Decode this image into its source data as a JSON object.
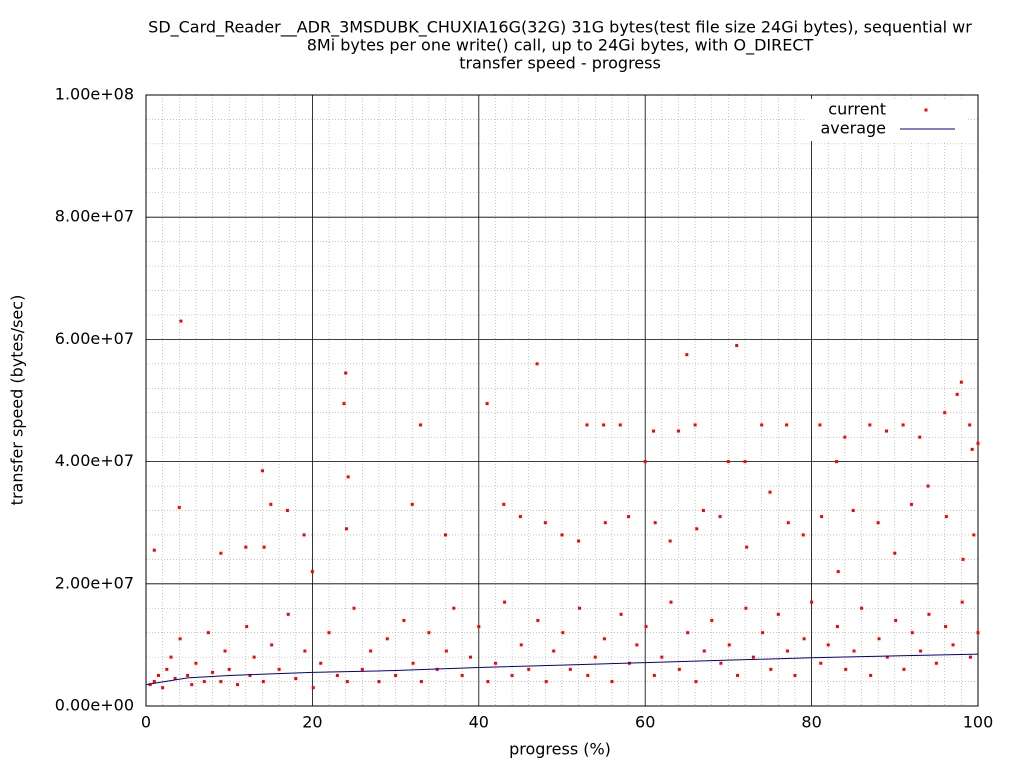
{
  "chart_data": {
    "type": "scatter",
    "title": [
      "SD_Card_Reader__ADR_3MSDUBK_CHUXIA16G(32G) 31G bytes(test file size 24Gi bytes), sequential wr",
      "8Mi bytes per one write() call, up to 24Gi bytes, with O_DIRECT",
      "transfer speed - progress"
    ],
    "x_label": "progress (%)",
    "y_label": "transfer speed (bytes/sec)",
    "xlim": [
      0,
      100
    ],
    "xticks": [
      0,
      20,
      40,
      60,
      80,
      100
    ],
    "ylim": [
      0,
      100000000
    ],
    "yticks": [
      {
        "value": 0,
        "label": "0.00e+00"
      },
      {
        "value": 20000000,
        "label": "2.00e+07"
      },
      {
        "value": 40000000,
        "label": "4.00e+07"
      },
      {
        "value": 60000000,
        "label": "6.00e+07"
      },
      {
        "value": 80000000,
        "label": "8.00e+07"
      },
      {
        "value": 100000000,
        "label": "1.00e+08"
      }
    ],
    "grid": true,
    "minor_grid": {
      "x": 10,
      "y": 5
    },
    "legend": "top-right",
    "series": [
      {
        "name": "current",
        "color": "#ff0000",
        "mark": "points",
        "x": [
          4.2,
          24,
          23.8,
          47,
          65,
          71,
          98,
          97.5,
          41,
          33,
          53,
          55,
          57,
          60,
          61,
          64,
          66,
          70,
          72,
          74,
          77,
          81,
          83,
          84,
          87,
          89,
          91,
          93,
          96,
          99,
          100,
          99.3,
          14,
          24.3,
          4,
          15,
          17,
          19,
          1,
          9,
          12,
          14.2,
          20,
          24.1,
          32,
          36,
          43,
          45,
          48,
          50,
          52,
          55.2,
          58,
          61.2,
          63,
          66.2,
          67,
          69,
          72.2,
          75,
          77.2,
          79,
          81.2,
          83.2,
          85,
          88,
          90,
          92,
          94,
          96.2,
          98.2,
          99.5,
          0.5,
          1,
          1.5,
          2,
          2.5,
          3,
          3.5,
          4.1,
          5,
          5.5,
          6,
          7,
          7.5,
          8,
          9,
          9.5,
          10,
          11,
          12.1,
          12.5,
          13,
          14.1,
          15.1,
          16,
          17.1,
          18,
          19.1,
          20.1,
          21,
          22,
          23,
          24.2,
          25,
          26,
          27,
          28,
          29,
          30,
          31,
          32.1,
          33.1,
          34,
          35,
          36.1,
          37,
          38,
          39,
          40,
          41.1,
          42,
          43.1,
          44,
          45.1,
          46,
          47.1,
          48.1,
          49,
          50.1,
          51,
          52.1,
          53.1,
          54,
          55.1,
          56,
          57.1,
          58.1,
          59,
          60.1,
          61.1,
          62,
          63.1,
          64.1,
          65.1,
          66.1,
          67.1,
          68,
          69.1,
          70.1,
          71.1,
          72.1,
          73,
          74.1,
          75.1,
          76,
          77.1,
          78,
          79.1,
          80,
          81.1,
          82,
          83.1,
          84.1,
          85.1,
          86,
          87.1,
          88.1,
          89.1,
          90.1,
          91.1,
          92.1,
          93.1,
          94.1,
          95,
          96.1,
          97,
          98.1,
          99.1,
          100
        ],
        "values": [
          63000000,
          54500000,
          49500000,
          56000000,
          57500000,
          59000000,
          53000000,
          51000000,
          49500000,
          46000000,
          46000000,
          46000000,
          46000000,
          40000000,
          45000000,
          45000000,
          46000000,
          40000000,
          40000000,
          46000000,
          46000000,
          46000000,
          40000000,
          44000000,
          46000000,
          45000000,
          46000000,
          44000000,
          48000000,
          46000000,
          43000000,
          42000000,
          38500000,
          37500000,
          32500000,
          33000000,
          32000000,
          28000000,
          25500000,
          25000000,
          26000000,
          26000000,
          22000000,
          29000000,
          33000000,
          28000000,
          33000000,
          31000000,
          30000000,
          28000000,
          27000000,
          30000000,
          31000000,
          30000000,
          27000000,
          29000000,
          32000000,
          31000000,
          26000000,
          35000000,
          30000000,
          28000000,
          31000000,
          22000000,
          32000000,
          30000000,
          25000000,
          33000000,
          36000000,
          31000000,
          24000000,
          28000000,
          3500000,
          4000000,
          5000000,
          3000000,
          6000000,
          8000000,
          4500000,
          11000000,
          5000000,
          3500000,
          7000000,
          4000000,
          12000000,
          5500000,
          4000000,
          9000000,
          6000000,
          3500000,
          13000000,
          5000000,
          8000000,
          4000000,
          10000000,
          6000000,
          15000000,
          4500000,
          9000000,
          3000000,
          7000000,
          12000000,
          5000000,
          4000000,
          16000000,
          6000000,
          9000000,
          4000000,
          11000000,
          5000000,
          14000000,
          7000000,
          4000000,
          12000000,
          6000000,
          9000000,
          16000000,
          5000000,
          8000000,
          13000000,
          4000000,
          7000000,
          17000000,
          5000000,
          10000000,
          6000000,
          14000000,
          4000000,
          9000000,
          12000000,
          6000000,
          16000000,
          5000000,
          8000000,
          11000000,
          4000000,
          15000000,
          7000000,
          10000000,
          13000000,
          5000000,
          8000000,
          17000000,
          6000000,
          12000000,
          4000000,
          9000000,
          14000000,
          7000000,
          10000000,
          5000000,
          16000000,
          8000000,
          12000000,
          6000000,
          15000000,
          9000000,
          5000000,
          11000000,
          17000000,
          7000000,
          10000000,
          13000000,
          6000000,
          9000000,
          16000000,
          5000000,
          11000000,
          8000000,
          14000000,
          6000000,
          12000000,
          9000000,
          15000000,
          7000000,
          13000000,
          10000000,
          17000000,
          8000000,
          12000000
        ]
      },
      {
        "name": "average",
        "color": "#00008b",
        "mark": "line",
        "x": [
          0,
          5,
          10,
          20,
          30,
          40,
          50,
          60,
          70,
          80,
          90,
          100
        ],
        "values": [
          3500000,
          4600000,
          5000000,
          5500000,
          5800000,
          6300000,
          6700000,
          7100000,
          7500000,
          7900000,
          8200000,
          8500000
        ]
      }
    ]
  }
}
